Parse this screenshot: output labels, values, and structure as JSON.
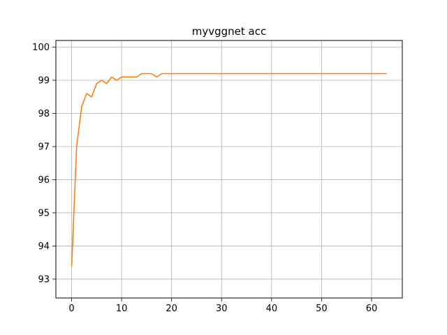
{
  "chart_data": {
    "type": "line",
    "title": "myvggnet acc",
    "xlabel": "",
    "ylabel": "",
    "xlim": [
      -3.15,
      66.15
    ],
    "ylim": [
      92.43,
      100.2
    ],
    "xticks": [
      0,
      10,
      20,
      30,
      40,
      50,
      60
    ],
    "yticks": [
      93,
      94,
      95,
      96,
      97,
      98,
      99,
      100
    ],
    "grid": true,
    "legend": "none",
    "series": [
      {
        "color": "#ff7f0e",
        "x": [
          0,
          1,
          2,
          3,
          4,
          5,
          6,
          7,
          8,
          9,
          10,
          11,
          12,
          13,
          14,
          15,
          16,
          17,
          18,
          19,
          20,
          21,
          22,
          23,
          24,
          25,
          26,
          27,
          28,
          29,
          30,
          31,
          32,
          33,
          34,
          35,
          36,
          37,
          38,
          39,
          40,
          41,
          42,
          43,
          44,
          45,
          46,
          47,
          48,
          49,
          50,
          51,
          52,
          53,
          54,
          55,
          56,
          57,
          58,
          59,
          60,
          61,
          62,
          63
        ],
        "y": [
          93.4,
          97.0,
          98.2,
          98.6,
          98.5,
          98.9,
          99.0,
          98.9,
          99.1,
          99.0,
          99.1,
          99.1,
          99.1,
          99.1,
          99.2,
          99.2,
          99.2,
          99.1,
          99.2,
          99.2,
          99.2,
          99.2,
          99.2,
          99.2,
          99.2,
          99.2,
          99.2,
          99.2,
          99.2,
          99.2,
          99.2,
          99.2,
          99.2,
          99.2,
          99.2,
          99.2,
          99.2,
          99.2,
          99.2,
          99.2,
          99.2,
          99.2,
          99.2,
          99.2,
          99.2,
          99.2,
          99.2,
          99.2,
          99.2,
          99.2,
          99.2,
          99.2,
          99.2,
          99.2,
          99.2,
          99.2,
          99.2,
          99.2,
          99.2,
          99.2,
          99.2,
          99.2,
          99.2,
          99.2
        ]
      }
    ]
  }
}
